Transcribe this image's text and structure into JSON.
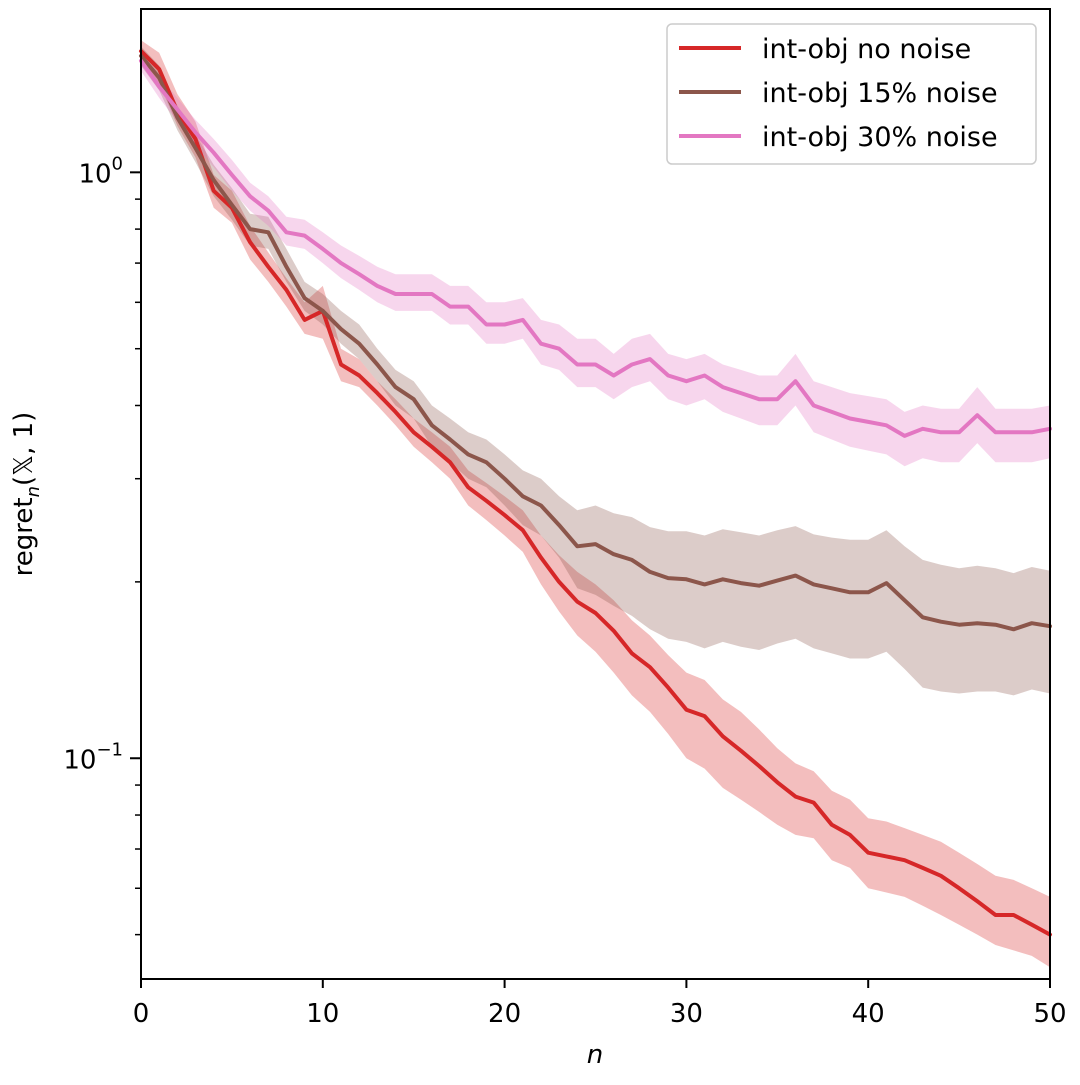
{
  "chart_data": {
    "type": "line",
    "title": "",
    "xlabel": "n",
    "ylabel": "regret_n(𝕏, 1)",
    "ylabel_main": "regret",
    "ylabel_sub": "n",
    "ylabel_args": "(𝕏, 1)",
    "yscale": "log",
    "xlim": [
      0,
      50
    ],
    "ylim": [
      0.042,
      1.9
    ],
    "grid": false,
    "legend_position": "top-right",
    "x_ticks": [
      0,
      10,
      20,
      30,
      40,
      50
    ],
    "x_tick_labels": [
      "0",
      "10",
      "20",
      "30",
      "40",
      "50"
    ],
    "y_major_ticks": [
      0.1,
      1.0
    ],
    "y_major_tick_labels": [
      {
        "base": "10",
        "exp": "−1"
      },
      {
        "base": "10",
        "exp": "0"
      }
    ],
    "y_minor_ticks": [
      0.05,
      0.06,
      0.07,
      0.08,
      0.09,
      0.2,
      0.3,
      0.4,
      0.5,
      0.6,
      0.7,
      0.8,
      0.9
    ],
    "x": [
      0,
      1,
      2,
      3,
      4,
      5,
      6,
      7,
      8,
      9,
      10,
      11,
      12,
      13,
      14,
      15,
      16,
      17,
      18,
      19,
      20,
      21,
      22,
      23,
      24,
      25,
      26,
      27,
      28,
      29,
      30,
      31,
      32,
      33,
      34,
      35,
      36,
      37,
      38,
      39,
      40,
      41,
      42,
      43,
      44,
      45,
      46,
      47,
      48,
      49,
      50
    ],
    "series": [
      {
        "name": "int-obj no noise",
        "color": "#d62728",
        "values": [
          1.61,
          1.5,
          1.27,
          1.14,
          0.93,
          0.87,
          0.76,
          0.69,
          0.63,
          0.56,
          0.58,
          0.47,
          0.45,
          0.42,
          0.39,
          0.36,
          0.34,
          0.32,
          0.29,
          0.275,
          0.26,
          0.245,
          0.22,
          0.2,
          0.185,
          0.177,
          0.165,
          0.151,
          0.143,
          0.132,
          0.121,
          0.118,
          0.109,
          0.103,
          0.097,
          0.091,
          0.086,
          0.084,
          0.077,
          0.074,
          0.069,
          0.068,
          0.067,
          0.065,
          0.063,
          0.06,
          0.057,
          0.054,
          0.054,
          0.052,
          0.05
        ],
        "lower": [
          1.55,
          1.42,
          1.2,
          1.06,
          0.87,
          0.82,
          0.71,
          0.65,
          0.59,
          0.53,
          0.52,
          0.44,
          0.43,
          0.4,
          0.37,
          0.34,
          0.32,
          0.3,
          0.27,
          0.255,
          0.24,
          0.225,
          0.198,
          0.178,
          0.162,
          0.152,
          0.14,
          0.128,
          0.12,
          0.11,
          0.1,
          0.096,
          0.089,
          0.085,
          0.081,
          0.077,
          0.074,
          0.073,
          0.067,
          0.065,
          0.06,
          0.059,
          0.058,
          0.056,
          0.054,
          0.052,
          0.05,
          0.048,
          0.047,
          0.046,
          0.044
        ],
        "upper": [
          1.68,
          1.6,
          1.36,
          1.22,
          0.99,
          0.93,
          0.81,
          0.73,
          0.66,
          0.6,
          0.64,
          0.5,
          0.48,
          0.44,
          0.41,
          0.38,
          0.36,
          0.34,
          0.31,
          0.295,
          0.28,
          0.265,
          0.24,
          0.222,
          0.208,
          0.198,
          0.186,
          0.172,
          0.162,
          0.15,
          0.14,
          0.136,
          0.126,
          0.12,
          0.112,
          0.104,
          0.098,
          0.095,
          0.088,
          0.085,
          0.079,
          0.078,
          0.076,
          0.074,
          0.072,
          0.069,
          0.066,
          0.063,
          0.062,
          0.06,
          0.058
        ]
      },
      {
        "name": "int-obj 15% noise",
        "color": "#8c564b",
        "values": [
          1.58,
          1.45,
          1.24,
          1.1,
          0.97,
          0.88,
          0.8,
          0.79,
          0.69,
          0.61,
          0.58,
          0.54,
          0.51,
          0.47,
          0.43,
          0.41,
          0.37,
          0.35,
          0.33,
          0.32,
          0.3,
          0.28,
          0.27,
          0.25,
          0.23,
          0.232,
          0.223,
          0.218,
          0.208,
          0.203,
          0.202,
          0.198,
          0.202,
          0.199,
          0.197,
          0.201,
          0.205,
          0.198,
          0.195,
          0.192,
          0.192,
          0.199,
          0.186,
          0.174,
          0.171,
          0.169,
          0.17,
          0.169,
          0.166,
          0.17,
          0.168
        ],
        "lower": [
          1.52,
          1.38,
          1.18,
          1.04,
          0.91,
          0.83,
          0.75,
          0.74,
          0.65,
          0.58,
          0.55,
          0.51,
          0.48,
          0.44,
          0.4,
          0.38,
          0.34,
          0.32,
          0.3,
          0.29,
          0.27,
          0.25,
          0.24,
          0.22,
          0.195,
          0.19,
          0.182,
          0.175,
          0.166,
          0.16,
          0.158,
          0.154,
          0.158,
          0.155,
          0.153,
          0.157,
          0.16,
          0.154,
          0.151,
          0.148,
          0.148,
          0.152,
          0.142,
          0.132,
          0.13,
          0.129,
          0.13,
          0.13,
          0.128,
          0.131,
          0.129
        ],
        "upper": [
          1.64,
          1.52,
          1.3,
          1.16,
          1.03,
          0.94,
          0.85,
          0.84,
          0.74,
          0.65,
          0.62,
          0.58,
          0.55,
          0.5,
          0.46,
          0.44,
          0.4,
          0.38,
          0.36,
          0.35,
          0.33,
          0.31,
          0.3,
          0.28,
          0.265,
          0.27,
          0.262,
          0.258,
          0.248,
          0.244,
          0.244,
          0.24,
          0.246,
          0.243,
          0.24,
          0.245,
          0.249,
          0.241,
          0.238,
          0.236,
          0.236,
          0.245,
          0.23,
          0.218,
          0.214,
          0.211,
          0.213,
          0.211,
          0.207,
          0.212,
          0.209
        ]
      },
      {
        "name": "int-obj 30% noise",
        "color": "#e377c2",
        "values": [
          1.55,
          1.4,
          1.28,
          1.17,
          1.08,
          0.99,
          0.91,
          0.86,
          0.79,
          0.78,
          0.74,
          0.7,
          0.67,
          0.64,
          0.62,
          0.62,
          0.62,
          0.59,
          0.59,
          0.55,
          0.55,
          0.56,
          0.51,
          0.5,
          0.47,
          0.47,
          0.45,
          0.47,
          0.48,
          0.45,
          0.44,
          0.45,
          0.43,
          0.42,
          0.41,
          0.41,
          0.44,
          0.4,
          0.39,
          0.38,
          0.375,
          0.37,
          0.355,
          0.365,
          0.36,
          0.36,
          0.385,
          0.36,
          0.36,
          0.36,
          0.365
        ],
        "lower": [
          1.49,
          1.34,
          1.22,
          1.11,
          1.02,
          0.93,
          0.86,
          0.81,
          0.75,
          0.74,
          0.7,
          0.66,
          0.63,
          0.6,
          0.58,
          0.58,
          0.58,
          0.55,
          0.55,
          0.51,
          0.51,
          0.52,
          0.47,
          0.46,
          0.43,
          0.43,
          0.41,
          0.43,
          0.44,
          0.41,
          0.4,
          0.41,
          0.39,
          0.38,
          0.37,
          0.37,
          0.4,
          0.36,
          0.35,
          0.34,
          0.335,
          0.33,
          0.315,
          0.325,
          0.32,
          0.32,
          0.345,
          0.32,
          0.32,
          0.32,
          0.325
        ],
        "upper": [
          1.61,
          1.46,
          1.34,
          1.23,
          1.14,
          1.05,
          0.96,
          0.91,
          0.84,
          0.83,
          0.79,
          0.75,
          0.72,
          0.69,
          0.67,
          0.67,
          0.67,
          0.64,
          0.64,
          0.6,
          0.6,
          0.61,
          0.56,
          0.55,
          0.52,
          0.52,
          0.49,
          0.52,
          0.53,
          0.49,
          0.48,
          0.49,
          0.47,
          0.46,
          0.45,
          0.45,
          0.49,
          0.44,
          0.43,
          0.42,
          0.415,
          0.41,
          0.39,
          0.4,
          0.395,
          0.395,
          0.43,
          0.395,
          0.395,
          0.395,
          0.4
        ]
      }
    ]
  }
}
